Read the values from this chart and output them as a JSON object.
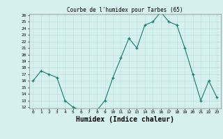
{
  "x": [
    0,
    1,
    2,
    3,
    4,
    5,
    6,
    7,
    8,
    9,
    10,
    11,
    12,
    13,
    14,
    15,
    16,
    17,
    18,
    19,
    20,
    21,
    22,
    23
  ],
  "y": [
    16,
    17.5,
    17,
    16.5,
    13,
    12,
    11.5,
    11.5,
    11.5,
    13,
    16.5,
    19.5,
    22.5,
    21,
    24.5,
    25,
    26.5,
    25,
    24.5,
    21,
    17,
    13,
    16,
    13.5
  ],
  "title": "Courbe de l'humidex pour Tarbes (65)",
  "xlabel": "Humidex (Indice chaleur)",
  "line_color": "#1a7a6e",
  "bg_color": "#d5f0ee",
  "grid_color": "#b8dbd8",
  "ylim": [
    12,
    26
  ],
  "xlim": [
    -0.5,
    23.5
  ],
  "yticks": [
    12,
    13,
    14,
    15,
    16,
    17,
    18,
    19,
    20,
    21,
    22,
    23,
    24,
    25,
    26
  ],
  "xticks": [
    0,
    1,
    2,
    3,
    4,
    5,
    6,
    7,
    8,
    9,
    10,
    11,
    12,
    13,
    14,
    15,
    16,
    17,
    18,
    19,
    20,
    21,
    22,
    23
  ]
}
